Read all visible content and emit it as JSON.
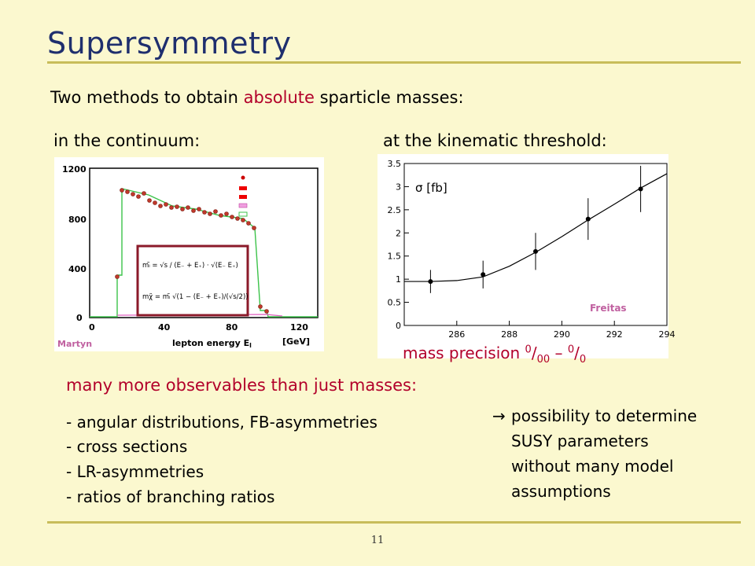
{
  "slide": {
    "title": "Supersymmetry",
    "intro_pre": "Two methods to obtain ",
    "intro_em": "absolute",
    "intro_post": " sparticle masses:",
    "continuum_label": "in the continuum:",
    "threshold_label": "at the kinematic threshold:",
    "precision_pre": "mass precision ",
    "precision_sup1": "0",
    "precision_mid1": "/",
    "precision_sub1": "00",
    "precision_mid2": " – ",
    "precision_sup2": "0",
    "precision_mid3": "/",
    "precision_sub2": "0",
    "observables_heading": "many more observables than just masses:",
    "observables": [
      "- angular distributions, FB-asymmetries",
      "- cross sections",
      "- LR-asymmetries",
      "- ratios of branching ratios"
    ],
    "arrow": "→",
    "conclusion": [
      "possibility to determine",
      "SUSY parameters",
      "without many model",
      "assumptions"
    ],
    "page_number": "11",
    "colors": {
      "title": "#1f2f6e",
      "accent": "#b2002a",
      "rule": "#c8bd5a",
      "background": "#fbf8cf"
    }
  },
  "left_figure": {
    "credit": "Martyn",
    "xlabel": "lepton energy E",
    "xlabel_sub": "l",
    "xunit": "[GeV]",
    "xticks": [
      "0",
      "40",
      "80",
      "120"
    ],
    "yticks": [
      "0",
      "400",
      "800",
      "1200"
    ],
    "formula_lines": [
      "mₗ̃ = √s / (E₋ + E₊) · √(E₋ E₊)",
      "mχ̃ = mₗ̃ √(1 − (E₋ + E₊)/(√s/2))"
    ]
  },
  "chart_data": {
    "type": "scatter",
    "title": "",
    "ylabel": "σ [fb]",
    "xlabel": "",
    "credit": "Freitas",
    "xlim": [
      284,
      294
    ],
    "ylim": [
      0,
      3.5
    ],
    "xticks": [
      "286",
      "288",
      "290",
      "292",
      "294"
    ],
    "yticks": [
      "0",
      "0.5",
      "1",
      "1.5",
      "2",
      "2.5",
      "3",
      "3.5"
    ],
    "points": [
      {
        "x": 285,
        "y": 0.95,
        "err": 0.25
      },
      {
        "x": 287,
        "y": 1.1,
        "err": 0.3
      },
      {
        "x": 289,
        "y": 1.6,
        "err": 0.4
      },
      {
        "x": 291,
        "y": 2.3,
        "err": 0.45
      },
      {
        "x": 293,
        "y": 2.95,
        "err": 0.5
      }
    ],
    "fit_curve": [
      [
        284,
        0.95
      ],
      [
        285,
        0.95
      ],
      [
        286,
        0.97
      ],
      [
        287,
        1.05
      ],
      [
        288,
        1.28
      ],
      [
        289,
        1.58
      ],
      [
        290,
        1.92
      ],
      [
        291,
        2.28
      ],
      [
        292,
        2.62
      ],
      [
        293,
        2.97
      ],
      [
        294,
        3.28
      ]
    ]
  }
}
